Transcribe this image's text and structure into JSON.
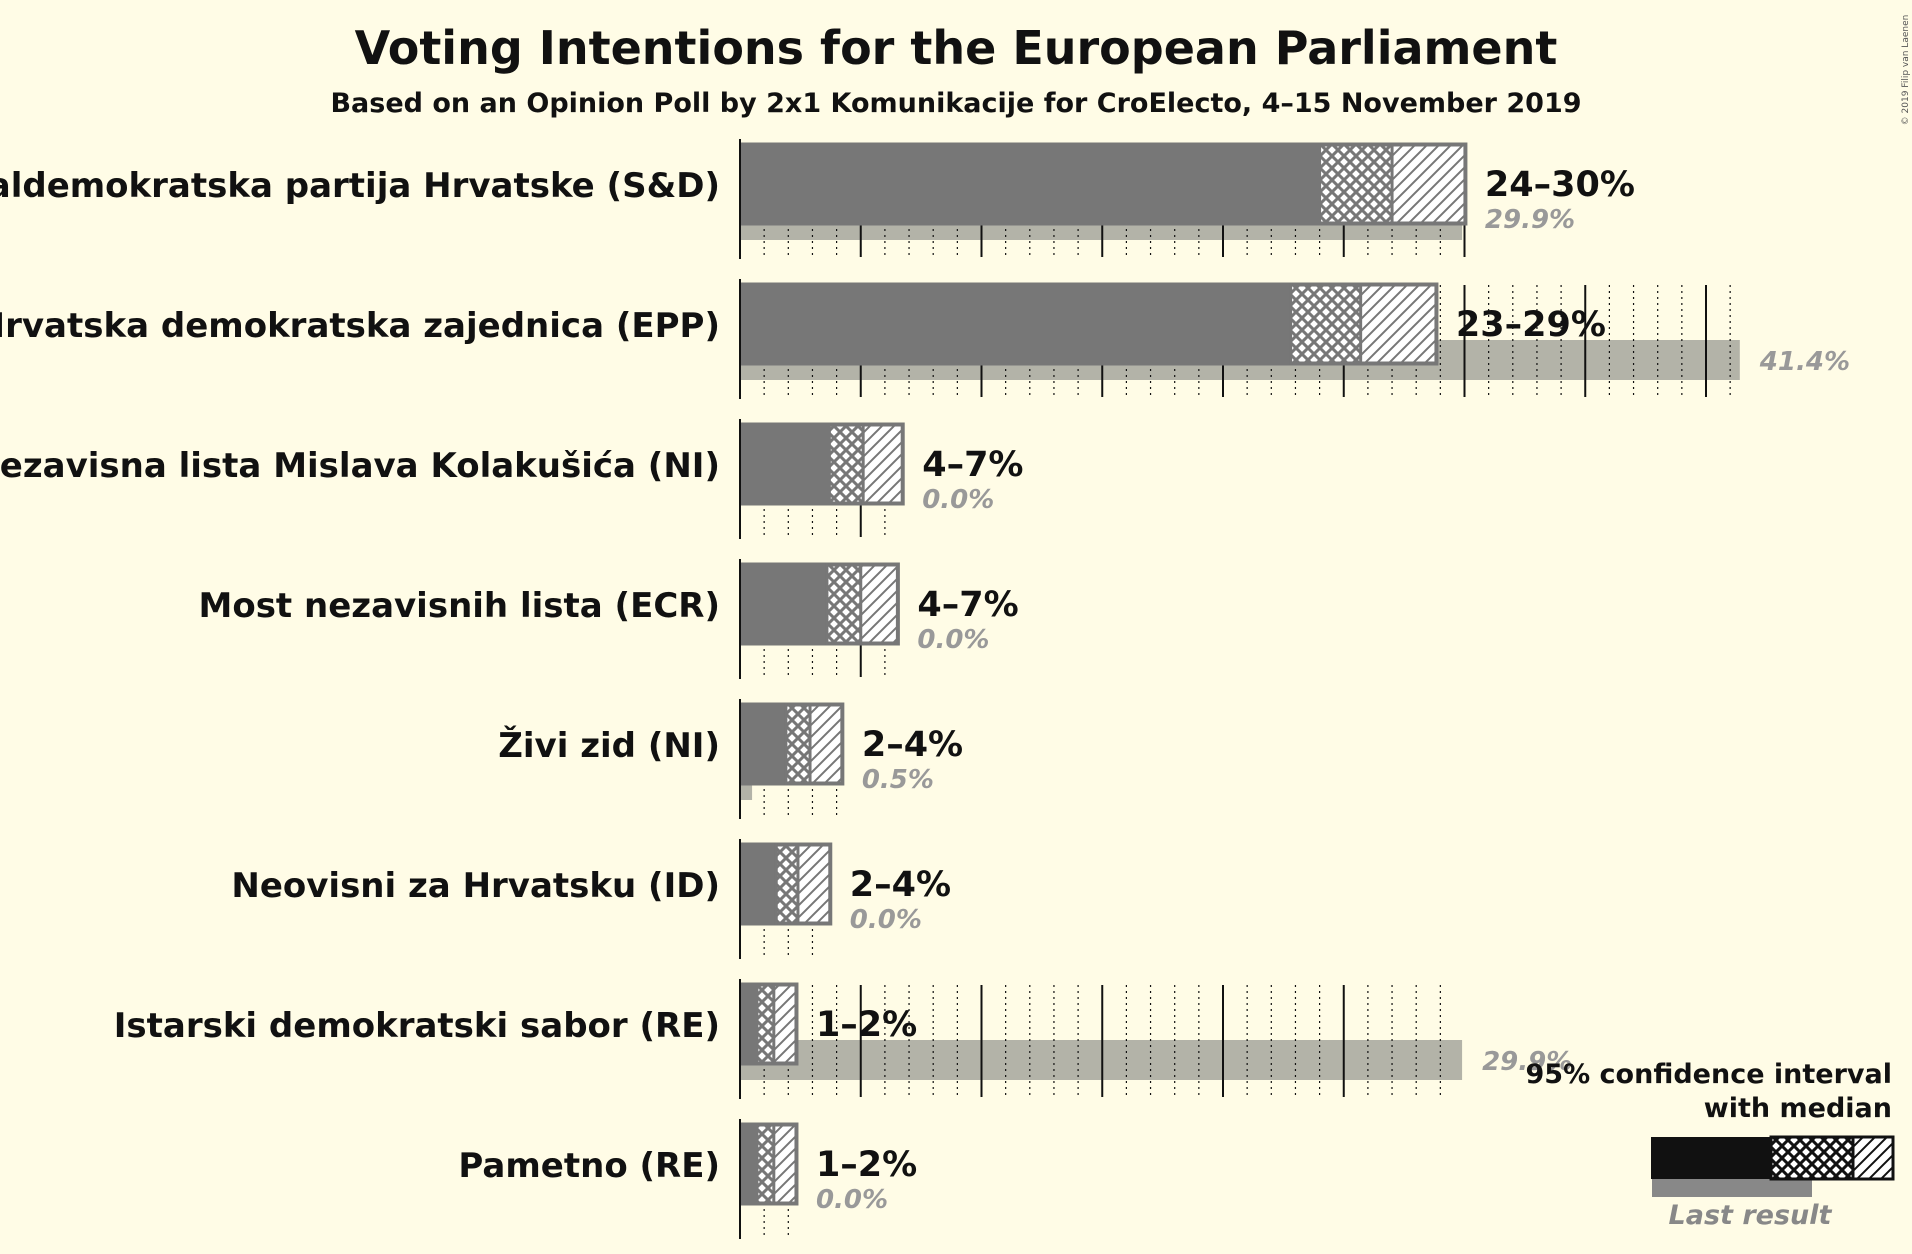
{
  "chart_data": {
    "type": "bar",
    "title": "Voting Intentions for the European Parliament",
    "subtitle": "Based on an Opinion Poll by 2x1 Komunikacije for CroElecto, 4–15 November 2019",
    "copyright": "© 2019 Filip van Laenen",
    "unit": "%",
    "xlim": [
      0,
      42
    ],
    "grid": true,
    "legend_position": "bottom-right",
    "colors": {
      "background": "#fffce6",
      "bar": "#777777",
      "last_result": "#b3b3a8",
      "legend_bar": "#111111",
      "legend_last": "#888888"
    },
    "categories": [
      "Socijaldemokratska partija Hrvatske (S&D)",
      "Hrvatska demokratska zajednica (EPP)",
      "Nezavisna lista Mislava Kolakušića (NI)",
      "Most nezavisnih lista (ECR)",
      "Živi zid (NI)",
      "Neovisni za Hrvatsku (ID)",
      "Istarski demokratski sabor (RE)",
      "Pametno (RE)"
    ],
    "series": [
      {
        "name": "95% confidence interval with median",
        "low": [
          24.0,
          22.8,
          3.7,
          3.6,
          1.9,
          1.5,
          0.7,
          0.7
        ],
        "median": [
          27.0,
          25.7,
          5.1,
          5.0,
          2.9,
          2.4,
          1.4,
          1.4
        ],
        "high": [
          30.1,
          28.9,
          6.8,
          6.6,
          4.3,
          3.8,
          2.4,
          2.4
        ],
        "labels": [
          "24–30%",
          "23–29%",
          "4–7%",
          "4–7%",
          "2–4%",
          "2–4%",
          "1–2%",
          "1–2%"
        ]
      },
      {
        "name": "Last result",
        "values": [
          29.9,
          41.4,
          0.0,
          0.0,
          0.5,
          0.0,
          29.9,
          0.0
        ],
        "labels": [
          "29.9%",
          "41.4%",
          "0.0%",
          "0.0%",
          "0.5%",
          "0.0%",
          "29.9%",
          "0.0%"
        ]
      }
    ],
    "legend": {
      "line1": "95% confidence interval",
      "line2": "with median",
      "last": "Last result"
    }
  }
}
